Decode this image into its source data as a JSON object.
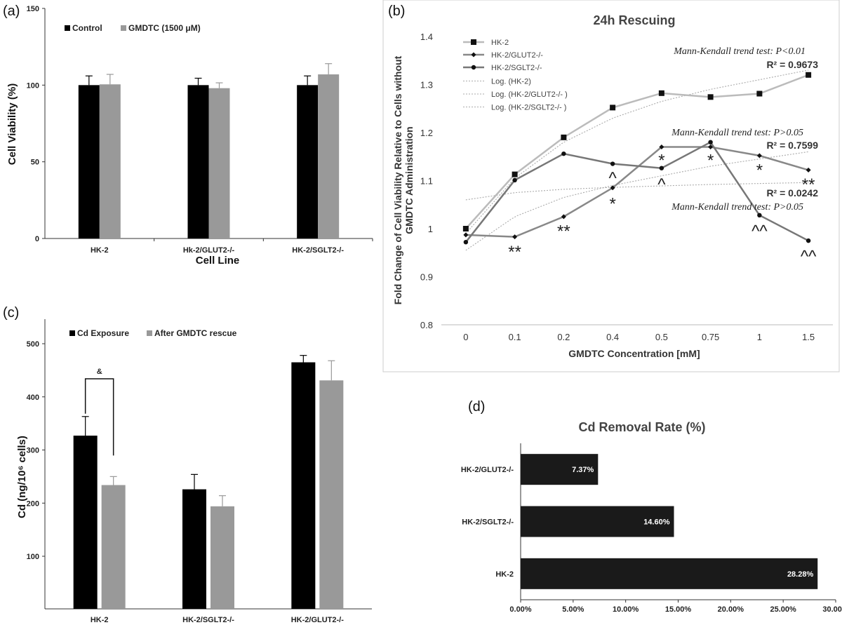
{
  "chart_data": [
    {
      "panel": "(a)",
      "type": "bar",
      "title": "",
      "xlabel": "Cell Line",
      "ylabel": "Cell Viability (%)",
      "ylim": [
        0,
        150
      ],
      "yticks": [
        0,
        50,
        100,
        150
      ],
      "categories": [
        "HK-2",
        "Hk-2/GLUT2-/-",
        "HK-2/SGLT2-/-"
      ],
      "legend_position": "top-left",
      "series": [
        {
          "name": "Control",
          "values": [
            100,
            100,
            100
          ],
          "errors": [
            6,
            4.5,
            6
          ],
          "color": "#000000"
        },
        {
          "name": "GMDTC (1500 μM)",
          "values": [
            100.5,
            98,
            107
          ],
          "errors": [
            6.5,
            3.5,
            7
          ],
          "color": "#999999"
        }
      ]
    },
    {
      "panel": "(b)",
      "type": "line",
      "title": "24h Rescuing",
      "xlabel": "GMDTC Concentration [mM]",
      "ylabel": "Fold Change of Cell Viability Relative to Cells without GMDTC Administration",
      "ylim": [
        0.8,
        1.4
      ],
      "yticks": [
        "0.8",
        "0.9",
        "1",
        "1.1",
        "1.2",
        "1.3",
        "1.4"
      ],
      "x": [
        "0",
        "0.1",
        "0.2",
        "0.4",
        "0.5",
        "0.75",
        "1",
        "1.5"
      ],
      "legend_position": "top-left",
      "series": [
        {
          "name": "HK-2",
          "values": [
            1.0,
            1.113,
            1.19,
            1.252,
            1.282,
            1.274,
            1.281,
            1.32
          ],
          "color": "#bbbbbb",
          "marker": "square"
        },
        {
          "name": "HK-2/GLUT2-/-",
          "values": [
            0.987,
            0.983,
            1.025,
            1.085,
            1.17,
            1.17,
            1.152,
            1.122
          ],
          "color": "#888888",
          "marker": "diamond"
        },
        {
          "name": "HK-2/SGLT2-/-",
          "values": [
            0.972,
            1.101,
            1.156,
            1.135,
            1.126,
            1.18,
            1.028,
            0.975
          ],
          "color": "#777777",
          "marker": "circle"
        }
      ],
      "trendlines": [
        {
          "name": "Log. (HK-2)",
          "values": [
            0.99,
            1.105,
            1.18,
            1.23,
            1.265,
            1.29,
            1.31,
            1.33
          ]
        },
        {
          "name": "Log. (HK-2/GLUT2-/-  )",
          "values": [
            0.955,
            1.025,
            1.065,
            1.09,
            1.11,
            1.13,
            1.145,
            1.16
          ]
        },
        {
          "name": "Log. (HK-2/SGLT2-/-  )",
          "values": [
            1.06,
            1.075,
            1.082,
            1.086,
            1.089,
            1.092,
            1.094,
            1.096
          ]
        }
      ],
      "annotations": [
        {
          "text": "Mann-Kendall trend test: P<0.01",
          "r2": "R² = 0.9673"
        },
        {
          "text": "Mann-Kendall trend test: P>0.05",
          "r2": "R² = 0.7599"
        },
        {
          "text": "Mann-Kendall trend test: P>0.05",
          "r2": "R² = 0.0242"
        }
      ],
      "significance_marks": [
        {
          "text": "**",
          "x_index": 1,
          "y": 0.955
        },
        {
          "text": "**",
          "x_index": 2,
          "y": 0.998
        },
        {
          "text": "*",
          "x_index": 3,
          "y": 1.055
        },
        {
          "text": "^",
          "x_index": 3,
          "y": 1.108
        },
        {
          "text": "*",
          "x_index": 4,
          "y": 1.145
        },
        {
          "text": "^",
          "x_index": 4,
          "y": 1.095
        },
        {
          "text": "*",
          "x_index": 5,
          "y": 1.145
        },
        {
          "text": "*",
          "x_index": 6,
          "y": 1.125
        },
        {
          "text": "^^",
          "x_index": 6,
          "y": 0.998
        },
        {
          "text": "**",
          "x_index": 7,
          "y": 1.095
        },
        {
          "text": "^^",
          "x_index": 7,
          "y": 0.945
        }
      ]
    },
    {
      "panel": "(c)",
      "type": "bar",
      "title": "",
      "xlabel": "",
      "ylabel": "Cd (ng/10⁶ cells)",
      "ylim": [
        0,
        500
      ],
      "yticks": [
        100,
        200,
        300,
        400,
        500
      ],
      "categories": [
        "HK-2",
        "HK-2/SGLT2-/-",
        "HK-2/GLUT2-/-"
      ],
      "legend_position": "top-left",
      "series": [
        {
          "name": "Cd Exposure",
          "values": [
            327,
            226,
            465
          ],
          "errors": [
            36,
            28,
            13
          ],
          "color": "#000000"
        },
        {
          "name": "After GMDTC rescue",
          "values": [
            234,
            194,
            431
          ],
          "errors": [
            16,
            20,
            37
          ],
          "color": "#999999"
        }
      ],
      "annotations": [
        {
          "text": "&",
          "between": "HK-2"
        }
      ]
    },
    {
      "panel": "(d)",
      "type": "bar",
      "orientation": "horizontal",
      "title": "Cd Removal Rate (%)",
      "xlim": [
        0,
        30
      ],
      "xticks": [
        "0.00%",
        "5.00%",
        "10.00%",
        "15.00%",
        "20.00%",
        "25.00%",
        "30.00%"
      ],
      "categories": [
        "HK-2/GLUT2-/-",
        "HK-2/SGLT2-/-",
        "HK-2"
      ],
      "values": [
        7.37,
        14.6,
        28.28
      ],
      "labels": [
        "7.37%",
        "14.60%",
        "28.28%"
      ],
      "color": "#1a1a1a"
    }
  ]
}
